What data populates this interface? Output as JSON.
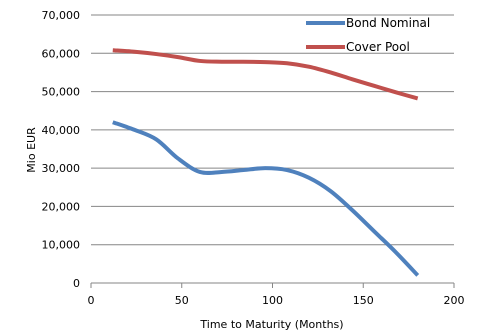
{
  "chart_data": {
    "type": "line",
    "title": "",
    "xlabel": "Time to Maturity (Months)",
    "ylabel": "Mio EUR",
    "xlim": [
      0,
      200
    ],
    "ylim": [
      0,
      70000
    ],
    "xticks": [
      0,
      50,
      100,
      150,
      200
    ],
    "yticks": [
      0,
      10000,
      20000,
      30000,
      40000,
      50000,
      60000,
      70000
    ],
    "ytick_labels": [
      "0",
      "10,000",
      "20,000",
      "30,000",
      "40,000",
      "50,000",
      "60,000",
      "70,000"
    ],
    "grid": "horizontal",
    "legend_position": "top-right",
    "series": [
      {
        "name": "Bond Nominal",
        "color": "#4F81BD",
        "x": [
          12,
          24,
          36,
          48,
          60,
          72,
          84,
          96,
          108,
          120,
          132,
          144,
          156,
          168,
          180
        ],
        "y": [
          42000,
          40000,
          37500,
          32500,
          29000,
          29000,
          29500,
          30000,
          29500,
          27500,
          24000,
          19000,
          13500,
          8000,
          2000
        ]
      },
      {
        "name": "Cover Pool",
        "color": "#C0504D",
        "x": [
          12,
          24,
          36,
          48,
          60,
          72,
          84,
          96,
          108,
          120,
          132,
          144,
          156,
          168,
          180
        ],
        "y": [
          60800,
          60400,
          59800,
          59000,
          58000,
          57800,
          57800,
          57700,
          57400,
          56500,
          55000,
          53200,
          51500,
          49800,
          48200
        ]
      }
    ]
  }
}
